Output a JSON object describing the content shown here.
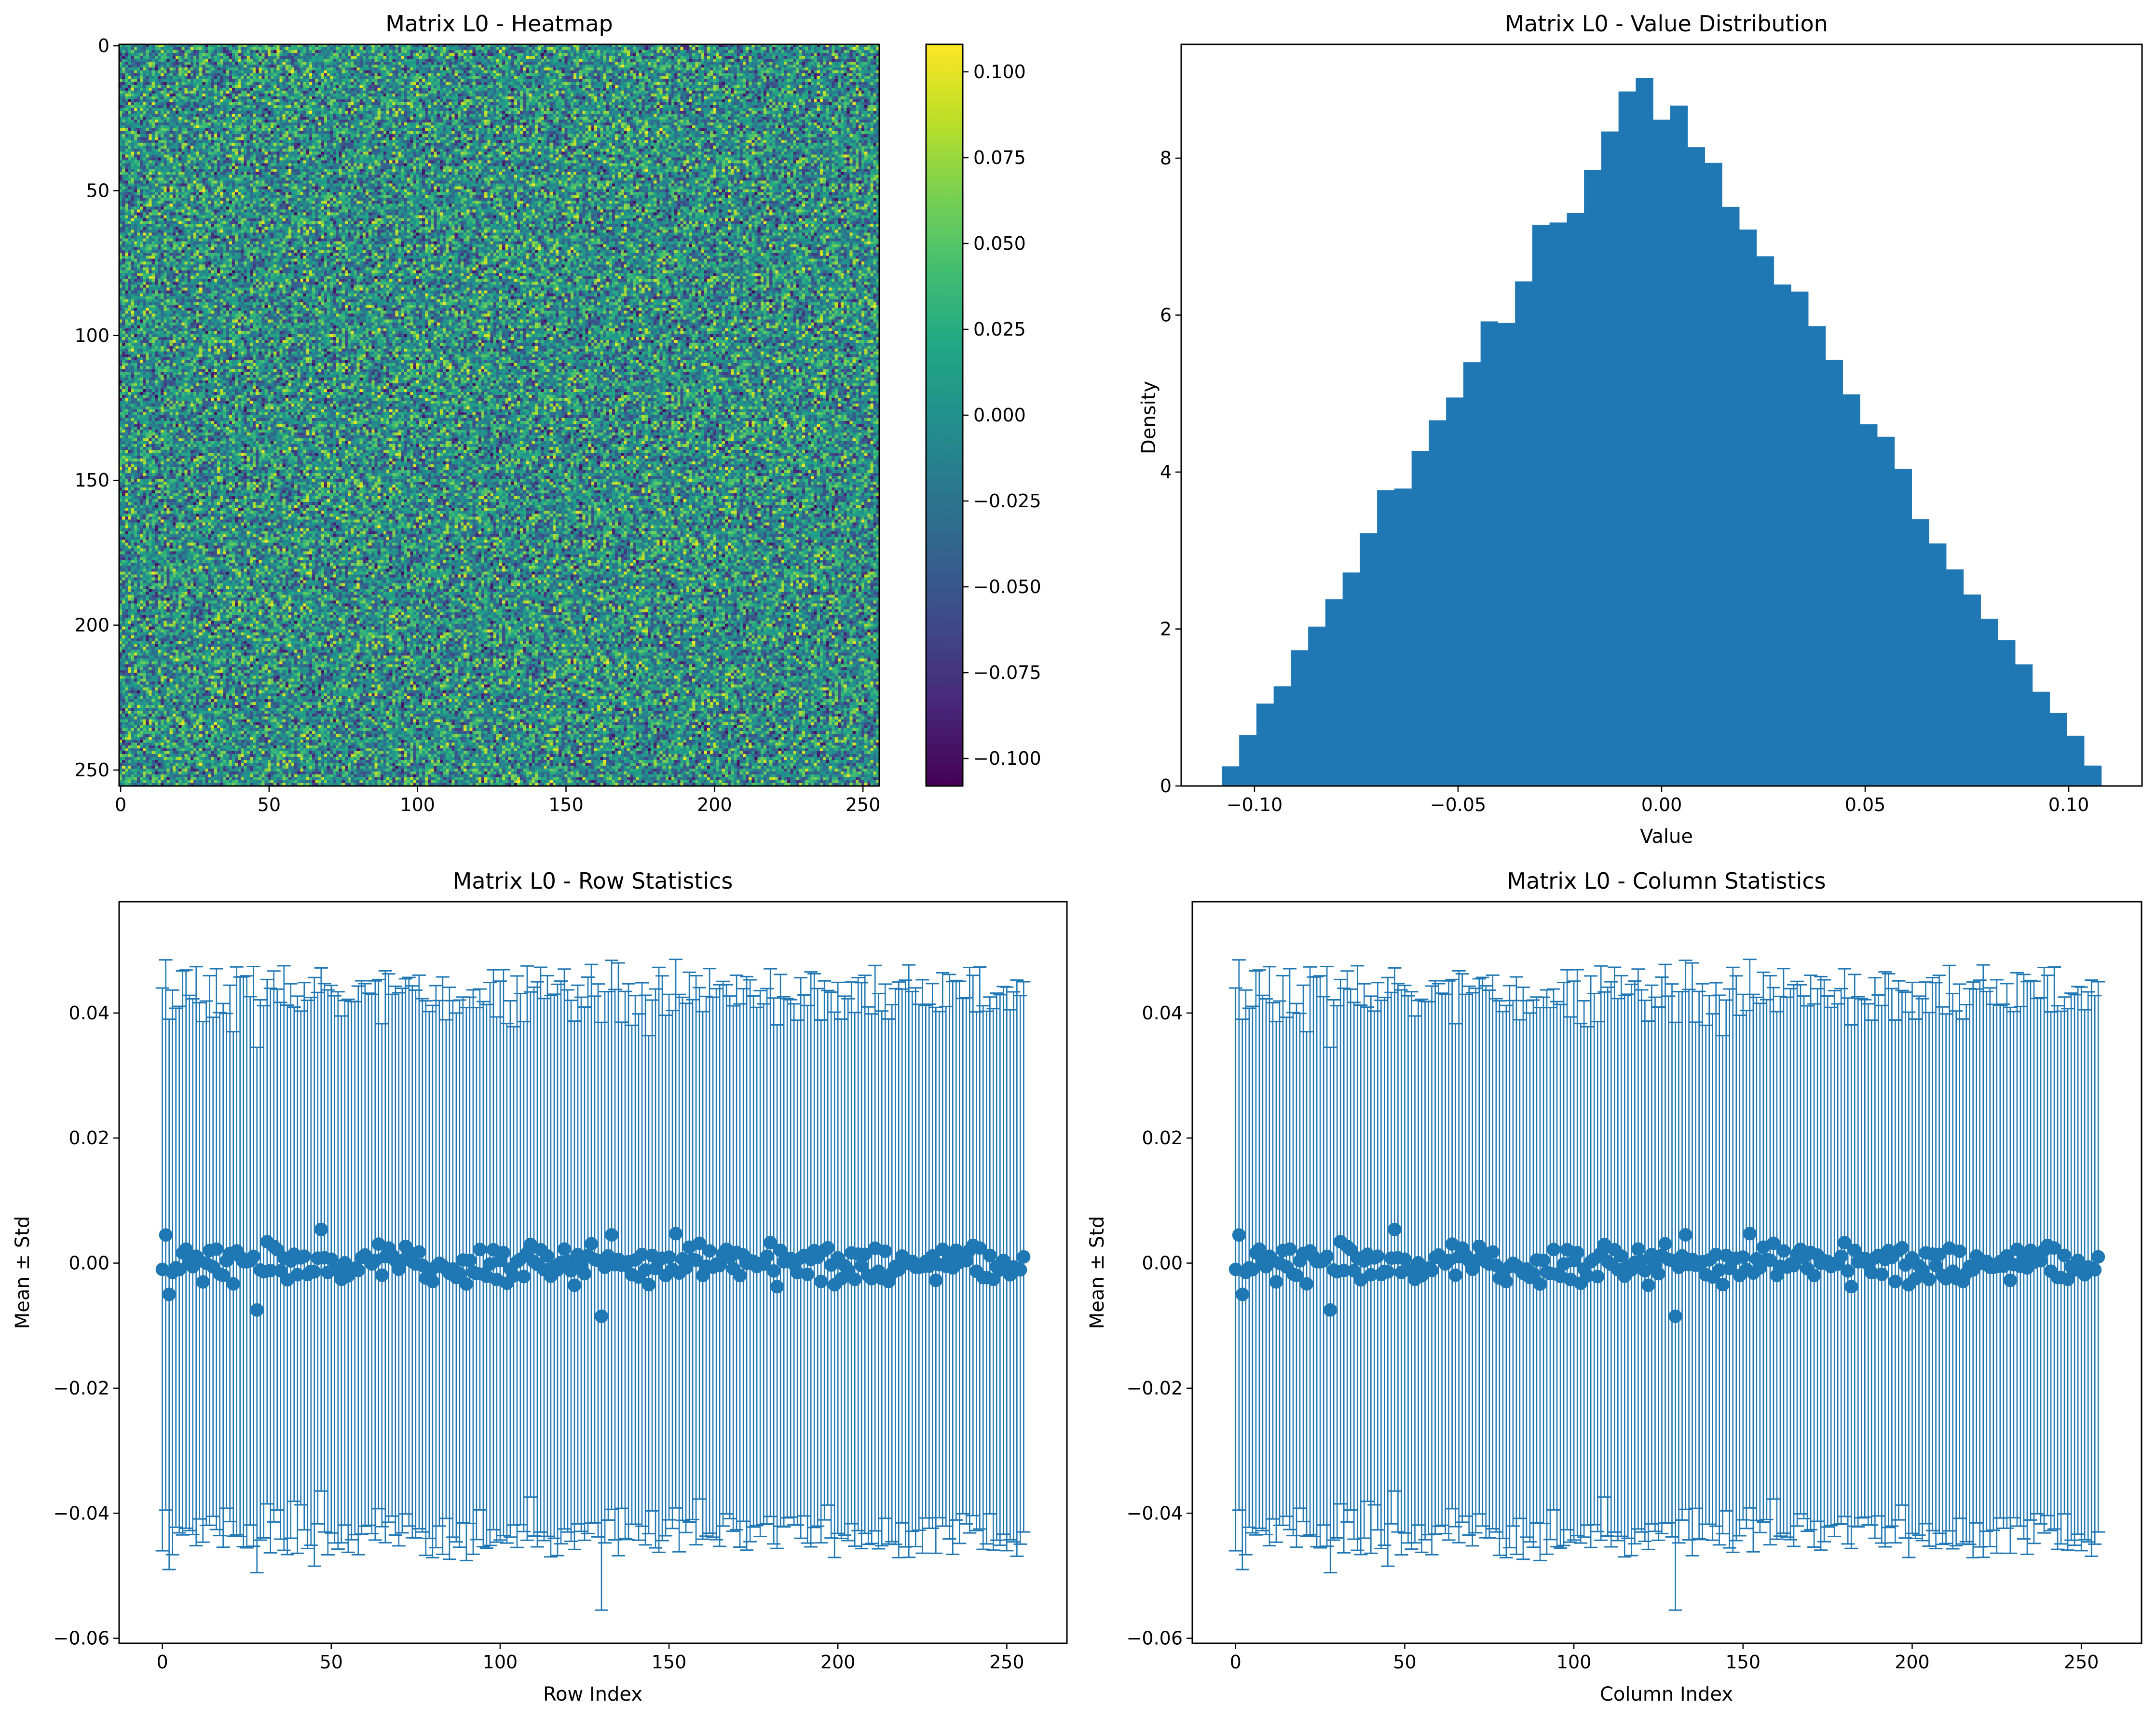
{
  "colors": {
    "bars": "#1f77b4",
    "markers": "#1f77b4",
    "errorbars": "#1f77b4",
    "axes": "#000000",
    "colormap": "viridis"
  },
  "chart_data": [
    {
      "id": "heatmap",
      "type": "heatmap",
      "title": "Matrix L0 - Heatmap",
      "xlabel": "",
      "ylabel": "",
      "rows": 256,
      "cols": 256,
      "xlim": [
        0,
        256
      ],
      "ylim": [
        256,
        0
      ],
      "x_ticks": [
        "0",
        "50",
        "100",
        "150",
        "200",
        "250"
      ],
      "y_ticks": [
        "0",
        "50",
        "100",
        "150",
        "200",
        "250"
      ],
      "colorbar": {
        "range": [
          -0.108,
          0.108
        ],
        "ticks": [
          "−0.100",
          "−0.075",
          "−0.050",
          "−0.025",
          "0.000",
          "0.025",
          "0.050",
          "0.075",
          "0.100"
        ],
        "tick_values": [
          -0.1,
          -0.075,
          -0.05,
          -0.025,
          0.0,
          0.025,
          0.05,
          0.075,
          0.1
        ]
      },
      "value_distribution": "approximately uniform noise in [-0.108, 0.108]",
      "grid": false
    },
    {
      "id": "histogram",
      "type": "bar",
      "title": "Matrix L0 - Value Distribution",
      "xlabel": "Value",
      "ylabel": "Density",
      "xlim": [
        -0.118,
        0.118
      ],
      "ylim": [
        0,
        9.45
      ],
      "x_ticks": [
        "−0.10",
        "−0.05",
        "0.00",
        "0.05",
        "0.10"
      ],
      "x_tick_values": [
        -0.1,
        -0.05,
        0.0,
        0.05,
        0.1
      ],
      "y_ticks": [
        "0",
        "2",
        "4",
        "6",
        "8"
      ],
      "y_tick_values": [
        0,
        2,
        4,
        6,
        8
      ],
      "bin_range": [
        -0.108,
        0.108
      ],
      "values": [
        0.25,
        0.65,
        1.05,
        1.27,
        1.73,
        2.03,
        2.38,
        2.72,
        3.22,
        3.77,
        3.79,
        4.27,
        4.66,
        4.95,
        5.4,
        5.92,
        5.9,
        6.43,
        7.15,
        7.18,
        7.3,
        7.85,
        8.34,
        8.85,
        9.02,
        8.49,
        8.67,
        8.14,
        7.94,
        7.38,
        7.09,
        6.75,
        6.39,
        6.3,
        5.86,
        5.43,
        4.99,
        4.61,
        4.45,
        4.04,
        3.4,
        3.09,
        2.76,
        2.44,
        2.13,
        1.86,
        1.55,
        1.2,
        0.93,
        0.64,
        0.26
      ],
      "grid": false
    },
    {
      "id": "row-stats",
      "type": "scatter",
      "title": "Matrix L0 - Row Statistics",
      "xlabel": "Row Index",
      "ylabel": "Mean ± Std",
      "xlim": [
        -12.8,
        267.8
      ],
      "ylim": [
        -0.0608,
        0.0578
      ],
      "x_ticks": [
        "0",
        "50",
        "100",
        "150",
        "200",
        "250"
      ],
      "x_tick_values": [
        0,
        50,
        100,
        150,
        200,
        250
      ],
      "y_ticks": [
        "−0.06",
        "−0.04",
        "−0.02",
        "0.00",
        "0.02",
        "0.04"
      ],
      "y_tick_values": [
        -0.06,
        -0.04,
        -0.02,
        0.0,
        0.02,
        0.04
      ],
      "n_points": 256,
      "mean_range": [
        -0.008,
        0.006
      ],
      "std_range": [
        0.038,
        0.053
      ],
      "sample_points": [
        {
          "x": 0,
          "mean": -0.001,
          "std": 0.045
        },
        {
          "x": 1,
          "mean": 0.0045,
          "std": 0.044
        },
        {
          "x": 2,
          "mean": -0.005,
          "std": 0.044
        },
        {
          "x": 28,
          "mean": -0.0075,
          "std": 0.042
        },
        {
          "x": 130,
          "mean": -0.0085,
          "std": 0.047
        },
        {
          "x": 255,
          "mean": 0.001,
          "std": 0.044
        }
      ],
      "grid": false
    },
    {
      "id": "col-stats",
      "type": "scatter",
      "title": "Matrix L0 - Column Statistics",
      "xlabel": "Column Index",
      "ylabel": "Mean ± Std",
      "xlim": [
        -12.8,
        267.8
      ],
      "ylim": [
        -0.0608,
        0.0578
      ],
      "x_ticks": [
        "0",
        "50",
        "100",
        "150",
        "200",
        "250"
      ],
      "x_tick_values": [
        0,
        50,
        100,
        150,
        200,
        250
      ],
      "y_ticks": [
        "−0.06",
        "−0.04",
        "−0.02",
        "0.00",
        "0.02",
        "0.04"
      ],
      "y_tick_values": [
        -0.06,
        -0.04,
        -0.02,
        0.0,
        0.02,
        0.04
      ],
      "n_points": 256,
      "mean_range": [
        -0.008,
        0.006
      ],
      "std_range": [
        0.038,
        0.053
      ],
      "sample_points": [
        {
          "x": 0,
          "mean": -0.001,
          "std": 0.045
        },
        {
          "x": 1,
          "mean": 0.0045,
          "std": 0.044
        },
        {
          "x": 2,
          "mean": -0.005,
          "std": 0.044
        },
        {
          "x": 28,
          "mean": -0.0075,
          "std": 0.042
        },
        {
          "x": 130,
          "mean": -0.0085,
          "std": 0.047
        },
        {
          "x": 255,
          "mean": 0.001,
          "std": 0.044
        }
      ],
      "grid": false
    }
  ]
}
